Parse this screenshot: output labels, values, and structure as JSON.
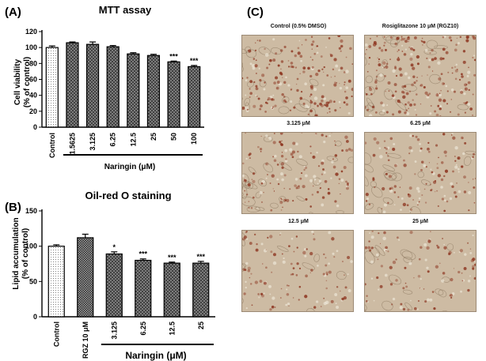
{
  "chart_data": [
    {
      "panel": "(A)",
      "type": "bar",
      "title": "MTT assay",
      "ylabel": [
        "Cell viability",
        "(% of control)"
      ],
      "ylim": [
        0,
        120
      ],
      "yticks": [
        "0",
        "20",
        "40",
        "60",
        "80",
        "100",
        "120"
      ],
      "categories": [
        "Control",
        "1.5625",
        "3.125",
        "6.25",
        "12.5",
        "25",
        "50",
        "100"
      ],
      "values": [
        100,
        106,
        104,
        101,
        92,
        90,
        82,
        76
      ],
      "errors": [
        2,
        1,
        3,
        1.5,
        1.5,
        1.5,
        1,
        1.5
      ],
      "significance": [
        "",
        "",
        "",
        "",
        "",
        "",
        "***",
        "***"
      ],
      "bracket_label": "Naringin (μM)",
      "bracket_start": 1,
      "grid": false
    },
    {
      "panel": "(B)",
      "type": "bar",
      "title": "Oil-red O staining",
      "ylabel": [
        "Lipid accumulation",
        "(% of control)"
      ],
      "ylim": [
        0,
        150
      ],
      "yticks": [
        "0",
        "50",
        "100",
        "150"
      ],
      "categories": [
        "Control",
        "RGZ 10 μM",
        "3.125",
        "6.25",
        "12.5",
        "25"
      ],
      "values": [
        100,
        112,
        89,
        80,
        76,
        76
      ],
      "errors": [
        2,
        5,
        3,
        2,
        1.5,
        2.5
      ],
      "significance": [
        "",
        "",
        "*",
        "***",
        "***",
        "***"
      ],
      "bracket_label": "Naringin (μM)",
      "bracket_start": 2,
      "grid": false
    }
  ],
  "micrographs": {
    "panel": "(C)",
    "titles": [
      "Control (0.5% DMSO)",
      "Rosiglitazone 10 μM (RGZ10)",
      "3.125 μM",
      "6.25 μM",
      "12.5 μM",
      "25 μM"
    ],
    "stain_density": [
      0.75,
      0.9,
      0.55,
      0.5,
      0.4,
      0.35
    ],
    "background_color": "#cdbba3",
    "stain_color": "#8a2f1a"
  },
  "colors": {
    "bar_outline": "#000000",
    "control_fill": "#ffffff",
    "rgz_fill": "#3a3a3a",
    "naringin_fill": "#8c8c8c"
  }
}
